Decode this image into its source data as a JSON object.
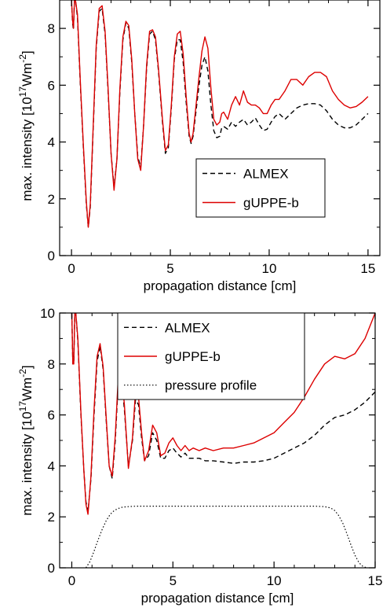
{
  "chart_data": [
    {
      "type": "line",
      "xlabel": "propagation distance [cm]",
      "ylabel_main": "max. intensity [10",
      "ylabel_exp1": "17",
      "ylabel_mid": "Wm",
      "ylabel_exp2": "-2",
      "ylabel_end": "]",
      "xlim": [
        -0.6,
        15.6
      ],
      "ylim": [
        0,
        9
      ],
      "xticks": [
        0,
        5,
        10,
        15
      ],
      "xtick_labels": [
        "0",
        "5",
        "10",
        "15"
      ],
      "yticks": [
        0,
        2,
        4,
        6,
        8
      ],
      "ytick_labels": [
        "0",
        "2",
        "4",
        "6",
        "8"
      ],
      "legend_position": "center-right",
      "grid": false,
      "series": [
        {
          "name": "ALMEX",
          "color": "#000000",
          "style": "dashed",
          "x": [
            0,
            0.05,
            0.1,
            0.15,
            0.2,
            0.3,
            0.45,
            0.6,
            0.75,
            0.85,
            0.95,
            1.1,
            1.25,
            1.4,
            1.55,
            1.7,
            1.85,
            2.0,
            2.15,
            2.3,
            2.45,
            2.6,
            2.75,
            2.9,
            3.05,
            3.2,
            3.35,
            3.5,
            3.65,
            3.8,
            3.95,
            4.1,
            4.25,
            4.4,
            4.6,
            4.75,
            4.9,
            5.05,
            5.2,
            5.35,
            5.5,
            5.65,
            5.8,
            5.95,
            6.05,
            6.15,
            6.3,
            6.45,
            6.6,
            6.75,
            6.9,
            7.05,
            7.2,
            7.35,
            7.5,
            7.6,
            7.7,
            7.9,
            8.1,
            8.3,
            8.5,
            8.7,
            8.9,
            9.1,
            9.3,
            9.5,
            9.7,
            9.9,
            10.1,
            10.3,
            10.5,
            10.8,
            11.1,
            11.4,
            11.7,
            12.0,
            12.3,
            12.6,
            12.9,
            13.2,
            13.5,
            13.8,
            14.1,
            14.4,
            14.7,
            15.0
          ],
          "y": [
            9,
            8.2,
            7.95,
            9,
            9,
            8.4,
            6.0,
            3.8,
            1.8,
            1.0,
            1.7,
            4.5,
            7.3,
            8.6,
            8.7,
            7.8,
            5.8,
            3.6,
            2.4,
            3.4,
            5.8,
            7.6,
            8.2,
            8.0,
            6.8,
            5.0,
            3.5,
            3.1,
            4.6,
            6.6,
            7.8,
            7.9,
            7.6,
            6.5,
            4.7,
            3.6,
            3.8,
            5.2,
            6.9,
            7.6,
            7.6,
            6.8,
            5.4,
            4.2,
            3.95,
            4.2,
            5.1,
            6.0,
            6.7,
            7.0,
            6.5,
            5.3,
            4.4,
            4.15,
            4.2,
            4.5,
            4.55,
            4.45,
            4.7,
            4.55,
            4.7,
            4.8,
            4.6,
            4.7,
            4.85,
            4.6,
            4.4,
            4.45,
            4.7,
            4.9,
            5.0,
            4.8,
            5.0,
            5.2,
            5.3,
            5.35,
            5.35,
            5.3,
            5.1,
            4.8,
            4.6,
            4.5,
            4.5,
            4.6,
            4.8,
            5.0
          ]
        },
        {
          "name": "gUPPE-b",
          "color": "#dd0000",
          "style": "solid",
          "x": [
            0,
            0.05,
            0.1,
            0.15,
            0.2,
            0.3,
            0.45,
            0.6,
            0.75,
            0.85,
            0.95,
            1.1,
            1.25,
            1.4,
            1.55,
            1.7,
            1.85,
            2.0,
            2.15,
            2.3,
            2.45,
            2.6,
            2.75,
            2.9,
            3.05,
            3.2,
            3.35,
            3.5,
            3.65,
            3.8,
            3.95,
            4.1,
            4.25,
            4.4,
            4.6,
            4.75,
            4.9,
            5.05,
            5.2,
            5.35,
            5.5,
            5.65,
            5.8,
            5.95,
            6.05,
            6.15,
            6.3,
            6.45,
            6.6,
            6.75,
            6.9,
            7.05,
            7.2,
            7.35,
            7.5,
            7.6,
            7.7,
            7.9,
            8.1,
            8.3,
            8.5,
            8.7,
            8.9,
            9.1,
            9.3,
            9.5,
            9.7,
            9.9,
            10.1,
            10.3,
            10.5,
            10.8,
            11.1,
            11.4,
            11.7,
            12.0,
            12.3,
            12.6,
            12.9,
            13.2,
            13.5,
            13.8,
            14.1,
            14.4,
            14.7,
            15.0
          ],
          "y": [
            9,
            8.3,
            8.0,
            9,
            9,
            8.5,
            6.1,
            3.9,
            1.9,
            1.0,
            1.8,
            4.6,
            7.4,
            8.7,
            8.8,
            7.9,
            5.9,
            3.6,
            2.3,
            3.4,
            5.9,
            7.7,
            8.25,
            8.1,
            6.9,
            5.0,
            3.4,
            3.0,
            4.6,
            6.7,
            7.9,
            7.95,
            7.7,
            6.6,
            4.8,
            3.7,
            3.9,
            5.3,
            7.0,
            7.8,
            7.9,
            7.1,
            5.6,
            4.3,
            4.0,
            4.3,
            5.3,
            6.3,
            7.2,
            7.7,
            7.3,
            5.9,
            4.8,
            4.6,
            4.7,
            5.0,
            5.05,
            4.8,
            5.3,
            5.6,
            5.3,
            5.8,
            5.4,
            5.3,
            5.3,
            5.2,
            5.0,
            5.0,
            5.3,
            5.5,
            5.5,
            5.8,
            6.2,
            6.2,
            6.0,
            6.3,
            6.45,
            6.45,
            6.3,
            5.8,
            5.5,
            5.3,
            5.2,
            5.25,
            5.4,
            5.6
          ]
        }
      ]
    },
    {
      "type": "line",
      "xlabel": "propagation distance [cm]",
      "ylabel_main": "max. intensity [10",
      "ylabel_exp1": "17",
      "ylabel_mid": "Wm",
      "ylabel_exp2": "-2",
      "ylabel_end": "]",
      "xlim": [
        -0.6,
        15.0
      ],
      "ylim": [
        0,
        10
      ],
      "xticks": [
        0,
        5,
        10,
        15
      ],
      "xtick_labels": [
        "0",
        "5",
        "10",
        "15"
      ],
      "yticks": [
        0,
        2,
        4,
        6,
        8,
        10
      ],
      "ytick_labels": [
        "0",
        "2",
        "4",
        "6",
        "8",
        "10"
      ],
      "legend_position": "top-center",
      "grid": false,
      "series": [
        {
          "name": "ALMEX",
          "color": "#000000",
          "style": "dashed",
          "x": [
            0,
            0.05,
            0.1,
            0.15,
            0.2,
            0.3,
            0.45,
            0.6,
            0.7,
            0.8,
            0.95,
            1.1,
            1.25,
            1.4,
            1.55,
            1.7,
            1.85,
            2.0,
            2.15,
            2.3,
            2.45,
            2.6,
            2.8,
            3.0,
            3.15,
            3.3,
            3.45,
            3.6,
            3.8,
            4.0,
            4.2,
            4.4,
            4.6,
            4.8,
            5.0,
            5.2,
            5.4,
            5.6,
            5.8,
            6.0,
            6.3,
            6.6,
            7.0,
            7.5,
            8.0,
            8.5,
            9.0,
            9.5,
            10.0,
            10.5,
            11.0,
            11.5,
            12.0,
            12.5,
            13.0,
            13.5,
            14.0,
            14.5,
            15.0
          ],
          "y": [
            10,
            8.0,
            8.0,
            10,
            10,
            8.9,
            6.0,
            3.8,
            2.6,
            2.2,
            3.5,
            6.0,
            8.1,
            8.7,
            7.8,
            5.8,
            4.0,
            3.5,
            5.0,
            7.3,
            7.5,
            6.2,
            4.0,
            5.0,
            6.6,
            6.4,
            5.1,
            4.2,
            4.4,
            5.3,
            5.0,
            4.3,
            4.3,
            4.6,
            4.7,
            4.5,
            4.35,
            4.5,
            4.3,
            4.3,
            4.3,
            4.2,
            4.2,
            4.15,
            4.1,
            4.15,
            4.15,
            4.2,
            4.3,
            4.5,
            4.7,
            4.9,
            5.2,
            5.6,
            5.9,
            6.0,
            6.2,
            6.5,
            6.9
          ]
        },
        {
          "name": "gUPPE-b",
          "color": "#dd0000",
          "style": "solid",
          "x": [
            0,
            0.05,
            0.1,
            0.15,
            0.2,
            0.3,
            0.45,
            0.6,
            0.7,
            0.8,
            0.95,
            1.1,
            1.25,
            1.4,
            1.55,
            1.7,
            1.85,
            2.0,
            2.15,
            2.3,
            2.45,
            2.6,
            2.8,
            3.0,
            3.15,
            3.3,
            3.45,
            3.6,
            3.8,
            4.0,
            4.2,
            4.4,
            4.6,
            4.8,
            5.0,
            5.2,
            5.4,
            5.6,
            5.8,
            6.0,
            6.3,
            6.6,
            7.0,
            7.5,
            8.0,
            8.5,
            9.0,
            9.5,
            10.0,
            10.5,
            11.0,
            11.5,
            12.0,
            12.5,
            13.0,
            13.5,
            14.0,
            14.5,
            15.0
          ],
          "y": [
            10,
            8.0,
            8.0,
            10,
            10,
            9.0,
            6.1,
            3.8,
            2.5,
            2.1,
            3.6,
            6.2,
            8.3,
            8.8,
            7.9,
            5.9,
            4.0,
            3.6,
            5.2,
            7.5,
            7.7,
            6.4,
            3.9,
            5.1,
            6.9,
            6.7,
            5.3,
            4.2,
            4.6,
            5.6,
            5.3,
            4.4,
            4.5,
            4.9,
            5.1,
            4.8,
            4.6,
            4.8,
            4.6,
            4.7,
            4.6,
            4.7,
            4.6,
            4.7,
            4.7,
            4.8,
            4.9,
            5.1,
            5.3,
            5.7,
            6.1,
            6.7,
            7.4,
            8.0,
            8.3,
            8.2,
            8.4,
            9.0,
            10.0
          ]
        },
        {
          "name": "pressure profile",
          "color": "#000000",
          "style": "dotted",
          "x": [
            0.7,
            0.9,
            1.1,
            1.3,
            1.5,
            1.7,
            1.9,
            2.1,
            2.3,
            2.5,
            2.8,
            3.2,
            4,
            5,
            6,
            7,
            8,
            9,
            10,
            11,
            12,
            12.5,
            12.8,
            13.0,
            13.2,
            13.4,
            13.6,
            13.8,
            14.0,
            14.2,
            14.4,
            14.6
          ],
          "y": [
            0,
            0.25,
            0.65,
            1.1,
            1.5,
            1.85,
            2.1,
            2.25,
            2.33,
            2.38,
            2.4,
            2.42,
            2.42,
            2.42,
            2.42,
            2.42,
            2.42,
            2.42,
            2.42,
            2.42,
            2.42,
            2.4,
            2.35,
            2.25,
            2.05,
            1.75,
            1.35,
            0.9,
            0.5,
            0.2,
            0.05,
            0
          ]
        }
      ]
    }
  ]
}
